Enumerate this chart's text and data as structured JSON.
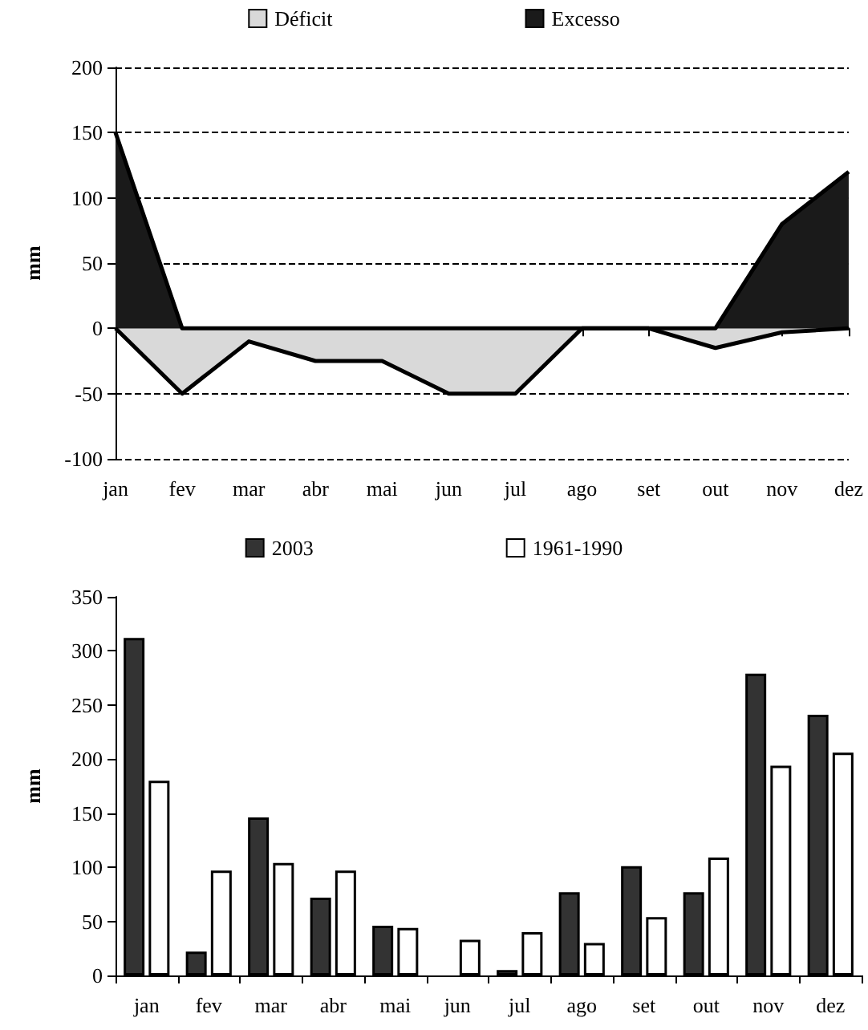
{
  "chart_data": [
    {
      "type": "area",
      "ylabel": "mm",
      "categories": [
        "jan",
        "fev",
        "mar",
        "abr",
        "mai",
        "jun",
        "jul",
        "ago",
        "set",
        "out",
        "nov",
        "dez"
      ],
      "series": [
        {
          "name": "Déficit",
          "color": "#d9d9d9",
          "values": [
            0,
            -50,
            -10,
            -25,
            -25,
            -50,
            -50,
            0,
            0,
            -15,
            -3,
            0
          ]
        },
        {
          "name": "Excesso",
          "color": "#1a1a1a",
          "values": [
            150,
            0,
            0,
            0,
            0,
            0,
            0,
            0,
            0,
            0,
            80,
            120
          ]
        }
      ],
      "ylim": [
        -100,
        200
      ],
      "yticks": [
        -100,
        -50,
        0,
        50,
        100,
        150,
        200
      ],
      "grid": "y",
      "legend": "top",
      "marker": "none"
    },
    {
      "type": "bar",
      "ylabel": "mm",
      "categories": [
        "jan",
        "fev",
        "mar",
        "abr",
        "mai",
        "jun",
        "jul",
        "ago",
        "set",
        "out",
        "nov",
        "dez"
      ],
      "series": [
        {
          "name": "2003",
          "color": "#333333",
          "values": [
            312,
            22,
            146,
            72,
            46,
            null,
            5,
            77,
            101,
            77,
            279,
            241
          ]
        },
        {
          "name": "1961-1990",
          "color": "#ffffff",
          "values": [
            180,
            97,
            104,
            97,
            44,
            33,
            40,
            30,
            54,
            109,
            194,
            206
          ]
        }
      ],
      "ylim": [
        0,
        350
      ],
      "yticks": [
        0,
        50,
        100,
        150,
        200,
        250,
        300,
        350
      ],
      "grid": false,
      "legend": "top"
    }
  ]
}
